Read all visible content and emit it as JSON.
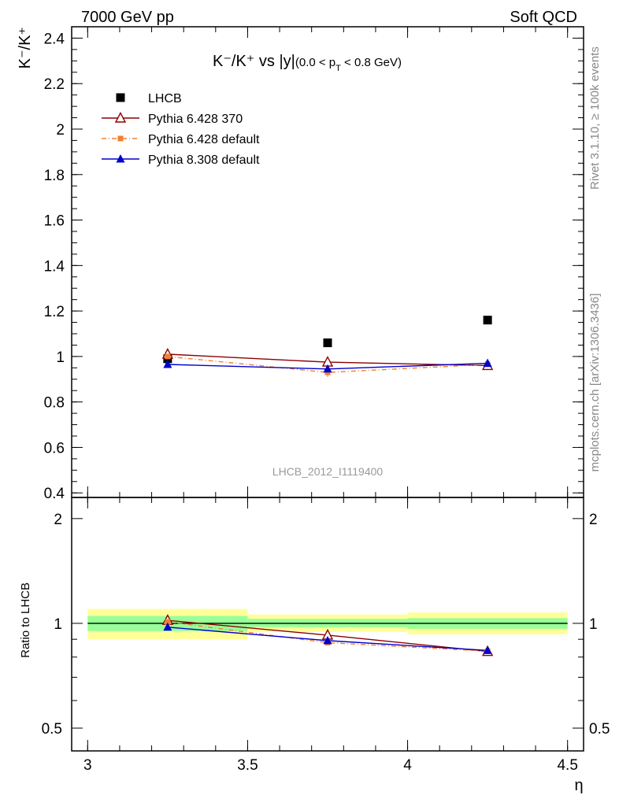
{
  "header": {
    "left": "7000 GeV pp",
    "right": "Soft QCD"
  },
  "side_labels": {
    "rivet": "Rivet 3.1.10, ≥ 100k events",
    "source": "mcplots.cern.ch [arXiv:1306.3436]"
  },
  "analysis_id": "LHCB_2012_I1119400",
  "colors": {
    "data": "#000000",
    "py6_370": "#8b0000",
    "py6_default": "#f08030",
    "py8_default": "#0000cc",
    "band_inner": "#99ff99",
    "band_outer": "#ffff99"
  },
  "chart_data": [
    {
      "type": "scatter",
      "title_main": "K⁻/K⁺ vs |y|",
      "title_cut": "(0.0 < p",
      "title_cut_sub": "T",
      "title_cut_end": " < 0.8 GeV)",
      "ylabel": "K⁻/K⁺",
      "ylim": [
        0.38,
        2.45
      ],
      "yticks": [
        0.4,
        0.6,
        0.8,
        1,
        1.2,
        1.4,
        1.6,
        1.8,
        2,
        2.2,
        2.4
      ],
      "ytick_labels": [
        "0.4",
        "0.6",
        "0.8",
        "1",
        "1.2",
        "1.4",
        "1.6",
        "1.8",
        "2",
        "2.2",
        "2.4"
      ],
      "xlim": [
        2.95,
        4.55
      ],
      "legend_position": "top-left",
      "series": [
        {
          "name": "LHCB",
          "x": [
            3.25,
            3.75,
            4.25
          ],
          "y": [
            0.99,
            1.06,
            1.16
          ],
          "marker": "square",
          "colorKey": "data"
        },
        {
          "name": "Pythia 6.428 370",
          "x": [
            3.25,
            3.75,
            4.25
          ],
          "y": [
            1.01,
            0.975,
            0.96
          ],
          "yerr": [
            0.02,
            0.015,
            0.015
          ],
          "marker": "triangle-open",
          "colorKey": "py6_370",
          "dash": ""
        },
        {
          "name": "Pythia 6.428 default",
          "x": [
            3.25,
            3.75,
            4.25
          ],
          "y": [
            1.0,
            0.93,
            0.965
          ],
          "yerr": [
            0.03,
            0.02,
            0.02
          ],
          "marker": "square-small",
          "colorKey": "py6_default",
          "dash": "6,3,1,3"
        },
        {
          "name": "Pythia 8.308 default",
          "x": [
            3.25,
            3.75,
            4.25
          ],
          "y": [
            0.965,
            0.945,
            0.97
          ],
          "yerr": [
            0.01,
            0.01,
            0.01
          ],
          "marker": "triangle-filled",
          "colorKey": "py8_default",
          "dash": ""
        }
      ]
    },
    {
      "type": "line",
      "ylabel": "Ratio to LHCB",
      "xlabel": "η",
      "scale": "log",
      "ylim": [
        0.43,
        2.3
      ],
      "xlim": [
        2.95,
        4.55
      ],
      "yticks": [
        0.5,
        1,
        2
      ],
      "ytick_labels": [
        "0.5",
        "1",
        "2"
      ],
      "xticks": [
        3,
        3.5,
        4,
        4.5
      ],
      "xtick_labels": [
        "3",
        "3.5",
        "4",
        "4.5"
      ],
      "bands": [
        {
          "x0": 3.0,
          "x1": 3.5,
          "inner": [
            0.95,
            1.05
          ],
          "outer": [
            0.9,
            1.1
          ]
        },
        {
          "x0": 3.5,
          "x1": 4.0,
          "inner": [
            0.975,
            1.03
          ],
          "outer": [
            0.945,
            1.06
          ]
        },
        {
          "x0": 4.0,
          "x1": 4.5,
          "inner": [
            0.965,
            1.035
          ],
          "outer": [
            0.93,
            1.075
          ]
        }
      ],
      "series": [
        {
          "name": "Pythia 6.428 370",
          "x": [
            3.25,
            3.75,
            4.25
          ],
          "y": [
            1.02,
            0.925,
            0.83
          ],
          "marker": "triangle-open",
          "colorKey": "py6_370",
          "dash": ""
        },
        {
          "name": "Pythia 6.428 default",
          "x": [
            3.25,
            3.75,
            4.25
          ],
          "y": [
            1.01,
            0.88,
            0.832
          ],
          "marker": "square-small",
          "colorKey": "py6_default",
          "dash": "6,3,1,3"
        },
        {
          "name": "Pythia 8.308 default",
          "x": [
            3.25,
            3.75,
            4.25
          ],
          "y": [
            0.975,
            0.892,
            0.836
          ],
          "marker": "triangle-filled",
          "colorKey": "py8_default",
          "dash": ""
        }
      ]
    }
  ]
}
